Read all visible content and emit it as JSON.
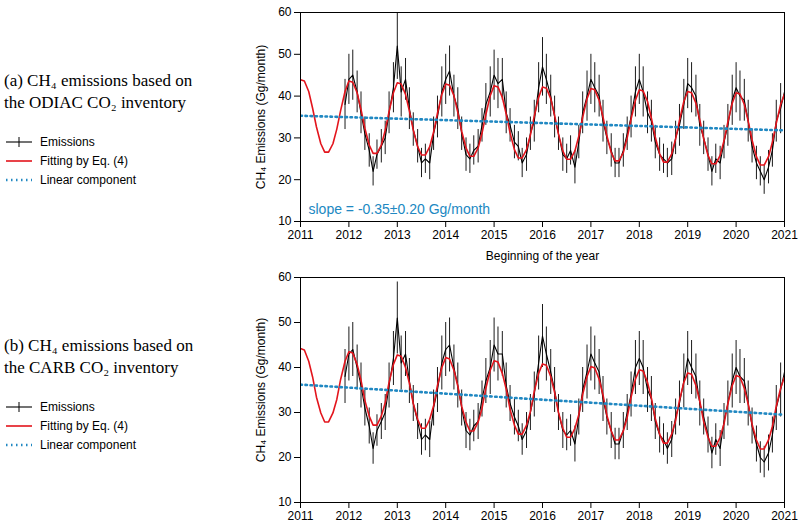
{
  "chart_data": [
    {
      "type": "line",
      "title": "(a) CH₄ emissions based on the ODIAC CO₂ inventory",
      "xlabel": "Beginning of the year",
      "ylabel": "CH₄ Emissions (Gg/month)",
      "annotation": "slope = -0.35±0.20 Gg/month",
      "xlim": [
        2011,
        2021
      ],
      "xticks": [
        2011,
        2012,
        2013,
        2014,
        2015,
        2016,
        2017,
        2018,
        2019,
        2020,
        2021
      ],
      "ylim": [
        10,
        60
      ],
      "yticks": [
        10,
        20,
        30,
        40,
        50,
        60
      ],
      "grid": false,
      "x": [
        2011,
        2011.08,
        2011.17,
        2011.25,
        2011.33,
        2011.42,
        2011.5,
        2011.58,
        2011.67,
        2011.75,
        2011.83,
        2011.92,
        2012,
        2012.08,
        2012.17,
        2012.25,
        2012.33,
        2012.42,
        2012.5,
        2012.58,
        2012.67,
        2012.75,
        2012.83,
        2012.92,
        2013,
        2013.08,
        2013.17,
        2013.25,
        2013.33,
        2013.42,
        2013.5,
        2013.58,
        2013.67,
        2013.75,
        2013.83,
        2013.92,
        2014,
        2014.08,
        2014.17,
        2014.25,
        2014.33,
        2014.42,
        2014.5,
        2014.58,
        2014.67,
        2014.75,
        2014.83,
        2014.92,
        2015,
        2015.08,
        2015.17,
        2015.25,
        2015.33,
        2015.42,
        2015.5,
        2015.58,
        2015.67,
        2015.75,
        2015.83,
        2015.92,
        2016,
        2016.08,
        2016.17,
        2016.25,
        2016.33,
        2016.42,
        2016.5,
        2016.58,
        2016.67,
        2016.75,
        2016.83,
        2016.92,
        2017,
        2017.08,
        2017.17,
        2017.25,
        2017.33,
        2017.42,
        2017.5,
        2017.58,
        2017.67,
        2017.75,
        2017.83,
        2017.92,
        2018,
        2018.08,
        2018.17,
        2018.25,
        2018.33,
        2018.42,
        2018.5,
        2018.58,
        2018.67,
        2018.75,
        2018.83,
        2018.92,
        2019,
        2019.08,
        2019.17,
        2019.25,
        2019.33,
        2019.42,
        2019.5,
        2019.58,
        2019.67,
        2019.75,
        2019.83,
        2019.92,
        2020,
        2020.08,
        2020.17,
        2020.25,
        2020.33,
        2020.42,
        2020.5,
        2020.58,
        2020.67,
        2020.75,
        2020.83,
        2020.92,
        2021
      ],
      "series": [
        {
          "name": "Emissions",
          "color": "#000000",
          "line_style": "solid",
          "values": [
            null,
            null,
            null,
            null,
            null,
            null,
            null,
            null,
            null,
            null,
            null,
            38,
            44,
            45,
            41,
            36,
            31,
            27,
            22,
            26,
            28,
            30,
            36,
            42,
            52,
            41,
            44,
            37,
            32,
            28,
            24,
            25,
            24,
            31,
            35,
            41,
            44,
            46,
            40,
            37,
            31,
            26,
            25,
            27,
            28,
            33,
            38,
            41,
            45,
            43,
            44,
            36,
            33,
            29,
            28,
            24,
            26,
            31,
            34,
            42,
            47,
            44,
            40,
            35,
            31,
            26,
            25,
            27,
            23,
            29,
            36,
            40,
            44,
            42,
            40,
            34,
            30,
            27,
            24,
            24,
            27,
            31,
            35,
            41,
            44,
            41,
            36,
            34,
            29,
            26,
            25,
            24,
            25,
            30,
            33,
            38,
            43,
            42,
            40,
            33,
            30,
            26,
            22,
            25,
            24,
            29,
            33,
            39,
            42,
            40,
            39,
            34,
            28,
            24,
            22,
            20,
            23,
            27,
            34,
            37,
            41
          ],
          "errors": [
            null,
            null,
            null,
            null,
            null,
            null,
            null,
            null,
            null,
            null,
            null,
            6,
            6,
            6,
            5,
            5,
            4,
            4,
            3.5,
            3.5,
            4,
            4,
            5,
            6,
            8,
            6,
            5,
            5,
            4,
            4,
            3.5,
            3.5,
            4,
            4,
            5,
            6,
            6,
            6,
            5,
            5,
            4,
            4,
            3.5,
            3.5,
            4,
            4,
            5,
            6,
            6,
            6,
            5,
            5,
            4,
            4,
            3.5,
            3.5,
            4,
            4,
            5,
            6,
            7,
            6,
            5,
            5,
            4,
            4,
            3.5,
            3.5,
            4,
            4,
            5,
            6,
            6,
            6,
            5,
            5,
            4,
            4,
            3.5,
            3.5,
            4,
            4,
            5,
            6,
            6,
            6,
            5,
            5,
            4,
            4,
            3.5,
            3.5,
            4,
            4,
            5,
            6,
            6,
            6,
            5,
            5,
            4,
            4,
            3.5,
            3.5,
            4,
            4,
            5,
            6,
            6,
            6,
            5,
            5,
            4,
            4,
            3.5,
            3.5,
            4,
            4,
            5,
            6,
            9
          ]
        },
        {
          "name": "Fitting by Eq. (4)",
          "color": "#e3141c",
          "line_style": "solid",
          "values": [
            43.9,
            43.6,
            41.1,
            37.1,
            32.6,
            28.6,
            26.6,
            26.6,
            28.6,
            32.1,
            36.6,
            41.1,
            43.6,
            43.3,
            40.8,
            36.8,
            32.3,
            28.3,
            26.3,
            26.3,
            28.3,
            31.8,
            36.3,
            40.8,
            43.2,
            42.9,
            40.4,
            36.4,
            31.9,
            27.9,
            25.9,
            25.9,
            27.9,
            31.4,
            35.9,
            40.4,
            42.9,
            42.6,
            40.1,
            36.1,
            31.6,
            27.6,
            25.6,
            25.6,
            27.6,
            31.1,
            35.6,
            40.1,
            42.5,
            42.2,
            39.7,
            35.7,
            31.2,
            27.2,
            25.2,
            25.2,
            27.2,
            30.7,
            35.2,
            39.7,
            42.2,
            41.9,
            39.4,
            35.4,
            30.9,
            26.9,
            24.9,
            24.9,
            26.9,
            30.4,
            34.9,
            39.4,
            41.8,
            41.5,
            39.0,
            35.0,
            30.5,
            26.5,
            24.5,
            24.5,
            26.5,
            30.0,
            34.5,
            39.0,
            41.5,
            41.2,
            38.7,
            34.7,
            30.2,
            26.2,
            24.2,
            24.2,
            26.2,
            29.7,
            34.2,
            38.7,
            41.1,
            40.8,
            38.3,
            34.3,
            29.8,
            25.8,
            23.8,
            23.8,
            25.8,
            29.3,
            33.8,
            38.3,
            40.8,
            40.5,
            38.0,
            34.0,
            29.5,
            25.5,
            23.5,
            23.5,
            25.5,
            29.0,
            33.5,
            38.0,
            40.5
          ]
        },
        {
          "name": "Linear component",
          "color": "#2088c2",
          "line_style": "dotted",
          "x": [
            2011,
            2021
          ],
          "values": [
            35.3,
            31.8
          ]
        }
      ]
    },
    {
      "type": "line",
      "title": "(b) CH₄ emissions based on the CARB CO₂ inventory",
      "ylabel": "CH₄ Emissions (Gg/month)",
      "xlim": [
        2011,
        2021
      ],
      "xticks": [
        2011,
        2012,
        2013,
        2014,
        2015,
        2016,
        2017,
        2018,
        2019,
        2020,
        2021
      ],
      "ylim": [
        10,
        60
      ],
      "yticks": [
        10,
        20,
        30,
        40,
        50,
        60
      ],
      "grid": false,
      "x": [
        2011,
        2011.08,
        2011.17,
        2011.25,
        2011.33,
        2011.42,
        2011.5,
        2011.58,
        2011.67,
        2011.75,
        2011.83,
        2011.92,
        2012,
        2012.08,
        2012.17,
        2012.25,
        2012.33,
        2012.42,
        2012.5,
        2012.58,
        2012.67,
        2012.75,
        2012.83,
        2012.92,
        2013,
        2013.08,
        2013.17,
        2013.25,
        2013.33,
        2013.42,
        2013.5,
        2013.58,
        2013.67,
        2013.75,
        2013.83,
        2013.92,
        2014,
        2014.08,
        2014.17,
        2014.25,
        2014.33,
        2014.42,
        2014.5,
        2014.58,
        2014.67,
        2014.75,
        2014.83,
        2014.92,
        2015,
        2015.08,
        2015.17,
        2015.25,
        2015.33,
        2015.42,
        2015.5,
        2015.58,
        2015.67,
        2015.75,
        2015.83,
        2015.92,
        2016,
        2016.08,
        2016.17,
        2016.25,
        2016.33,
        2016.42,
        2016.5,
        2016.58,
        2016.67,
        2016.75,
        2016.83,
        2016.92,
        2017,
        2017.08,
        2017.17,
        2017.25,
        2017.33,
        2017.42,
        2017.5,
        2017.58,
        2017.67,
        2017.75,
        2017.83,
        2017.92,
        2018,
        2018.08,
        2018.17,
        2018.25,
        2018.33,
        2018.42,
        2018.5,
        2018.58,
        2018.67,
        2018.75,
        2018.83,
        2018.92,
        2019,
        2019.08,
        2019.17,
        2019.25,
        2019.33,
        2019.42,
        2019.5,
        2019.58,
        2019.67,
        2019.75,
        2019.83,
        2019.92,
        2020,
        2020.08,
        2020.17,
        2020.25,
        2020.33,
        2020.42,
        2020.5,
        2020.58,
        2020.67,
        2020.75,
        2020.83,
        2020.92,
        2021
      ],
      "series": [
        {
          "name": "Emissions",
          "color": "#000000",
          "line_style": "solid",
          "values": [
            null,
            null,
            null,
            null,
            null,
            null,
            null,
            null,
            null,
            null,
            null,
            38,
            43,
            44,
            40,
            36,
            31,
            27,
            22,
            26,
            28,
            30,
            36,
            42,
            51,
            41,
            43,
            37,
            32,
            28,
            24,
            25,
            24,
            31,
            35,
            41,
            44,
            45,
            40,
            36,
            31,
            26,
            25,
            27,
            28,
            33,
            37,
            40,
            45,
            43,
            43,
            36,
            32,
            29,
            27,
            24,
            26,
            30,
            34,
            41,
            47,
            43,
            39,
            35,
            30,
            26,
            25,
            26,
            23,
            29,
            35,
            39,
            43,
            41,
            39,
            33,
            29,
            26,
            23,
            23,
            26,
            30,
            34,
            40,
            42,
            40,
            35,
            33,
            28,
            25,
            24,
            22,
            24,
            29,
            32,
            37,
            42,
            40,
            38,
            32,
            29,
            25,
            21,
            24,
            22,
            28,
            32,
            37,
            40,
            38,
            37,
            32,
            27,
            23,
            20,
            19,
            21,
            25,
            31,
            35,
            39
          ],
          "errors": [
            null,
            null,
            null,
            null,
            null,
            null,
            null,
            null,
            null,
            null,
            null,
            6,
            6,
            6,
            5,
            5,
            4,
            4,
            3.5,
            3.5,
            4,
            4,
            5,
            6,
            8,
            6,
            5,
            5,
            4,
            4,
            3.5,
            3.5,
            4,
            4,
            5,
            6,
            6,
            6,
            5,
            5,
            4,
            4,
            3.5,
            3.5,
            4,
            4,
            5,
            6,
            6,
            6,
            5,
            5,
            4,
            4,
            3.5,
            3.5,
            4,
            4,
            5,
            6,
            7,
            6,
            5,
            5,
            4,
            4,
            3.5,
            3.5,
            4,
            4,
            5,
            6,
            6,
            6,
            5,
            5,
            4,
            4,
            3.5,
            3.5,
            4,
            4,
            5,
            6,
            6,
            6,
            5,
            5,
            4,
            4,
            3.5,
            3.5,
            4,
            4,
            5,
            6,
            6,
            6,
            5,
            5,
            4,
            4,
            3.5,
            3.5,
            4,
            4,
            5,
            6,
            6,
            6,
            5,
            5,
            4,
            4,
            3.5,
            3.5,
            4,
            4,
            5,
            6,
            9
          ]
        },
        {
          "name": "Fitting by Eq. (4)",
          "color": "#e3141c",
          "line_style": "solid",
          "values": [
            44.2,
            43.9,
            41.4,
            37.9,
            33.4,
            29.9,
            27.9,
            27.9,
            29.9,
            32.9,
            37.4,
            41.4,
            43.5,
            43.2,
            40.7,
            37.2,
            32.7,
            29.2,
            27.2,
            27.2,
            29.2,
            32.2,
            36.7,
            40.7,
            42.8,
            42.5,
            40.0,
            36.5,
            32.0,
            28.5,
            26.5,
            26.5,
            28.5,
            31.5,
            36.0,
            40.0,
            42.2,
            41.9,
            39.4,
            35.9,
            31.4,
            27.9,
            25.9,
            25.9,
            27.9,
            30.9,
            35.4,
            39.4,
            41.5,
            41.2,
            38.7,
            35.2,
            30.7,
            27.2,
            25.2,
            25.2,
            27.2,
            30.2,
            34.7,
            38.7,
            40.8,
            40.5,
            38.0,
            34.5,
            30.0,
            26.5,
            24.5,
            24.5,
            26.5,
            29.5,
            34.0,
            38.0,
            40.2,
            39.9,
            37.4,
            33.9,
            29.4,
            25.9,
            23.9,
            23.9,
            25.9,
            28.9,
            33.4,
            37.4,
            39.5,
            39.2,
            36.7,
            33.2,
            28.7,
            25.2,
            23.2,
            23.2,
            25.2,
            28.2,
            32.7,
            36.7,
            38.8,
            38.5,
            36.0,
            32.5,
            28.0,
            24.5,
            22.5,
            22.5,
            24.5,
            27.5,
            32.0,
            36.0,
            38.2,
            37.9,
            35.4,
            31.9,
            27.4,
            23.9,
            21.9,
            21.9,
            23.9,
            26.9,
            31.4,
            35.4,
            37.9
          ]
        },
        {
          "name": "Linear component",
          "color": "#2088c2",
          "line_style": "dotted",
          "x": [
            2011,
            2021
          ],
          "values": [
            36.2,
            29.5
          ]
        }
      ]
    }
  ]
}
